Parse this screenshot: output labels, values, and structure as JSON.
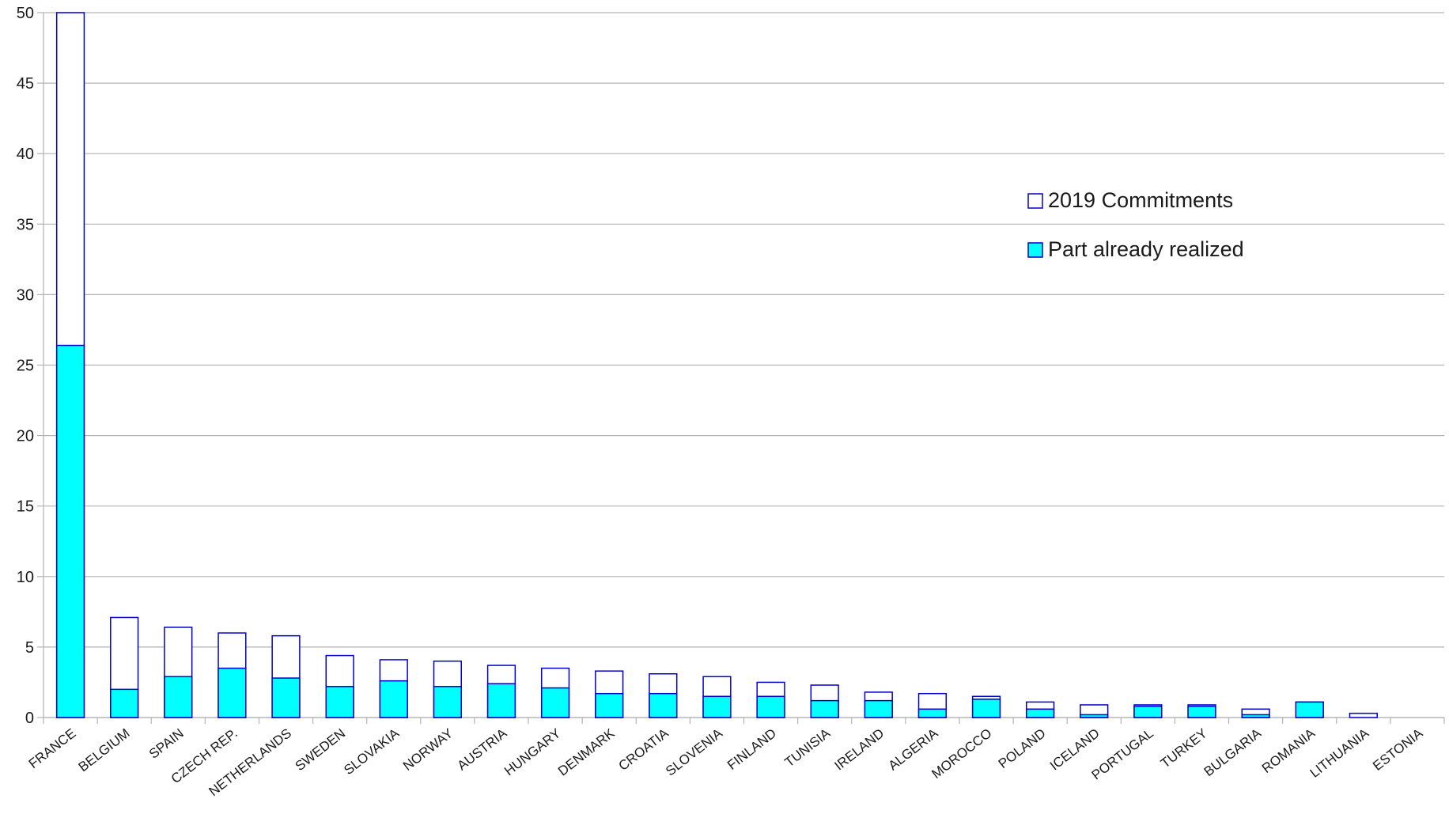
{
  "chart_data": {
    "type": "bar",
    "stacked_overlay": true,
    "title": "",
    "xlabel": "",
    "ylabel": "",
    "ylim": [
      0,
      50
    ],
    "yticks": [
      0,
      5,
      10,
      15,
      20,
      25,
      30,
      35,
      40,
      45,
      50
    ],
    "grid": true,
    "legend_position": "upper-right",
    "categories": [
      "FRANCE",
      "BELGIUM",
      "SPAIN",
      "CZECH REP.",
      "NETHERLANDS",
      "SWEDEN",
      "SLOVAKIA",
      "NORWAY",
      "AUSTRIA",
      "HUNGARY",
      "DENMARK",
      "CROATIA",
      "SLOVENIA",
      "FINLAND",
      "TUNISIA",
      "IRELAND",
      "ALGERIA",
      "MOROCCO",
      "POLAND",
      "ICELAND",
      "PORTUGAL",
      "TURKEY",
      "BULGARIA",
      "ROMANIA",
      "LITHUANIA",
      "ESTONIA"
    ],
    "series": [
      {
        "name": "2019 Commitments",
        "color": "#ffffff",
        "border": "#0000cc",
        "values": [
          50,
          7.1,
          6.4,
          6.0,
          5.8,
          4.4,
          4.1,
          4.0,
          3.7,
          3.5,
          3.3,
          3.1,
          2.9,
          2.5,
          2.3,
          1.8,
          1.7,
          1.5,
          1.1,
          0.9,
          0.9,
          0.9,
          0.6,
          1.1,
          0.3,
          0
        ]
      },
      {
        "name": "Part already realized",
        "color": "#00ffff",
        "border": "#0000cc",
        "values": [
          26.4,
          2.0,
          2.9,
          3.5,
          2.8,
          2.2,
          2.6,
          2.2,
          2.4,
          2.1,
          1.7,
          1.7,
          1.5,
          1.5,
          1.2,
          1.2,
          0.6,
          1.3,
          0.6,
          0.2,
          0.8,
          0.8,
          0.2,
          1.1,
          0,
          0
        ]
      }
    ]
  }
}
